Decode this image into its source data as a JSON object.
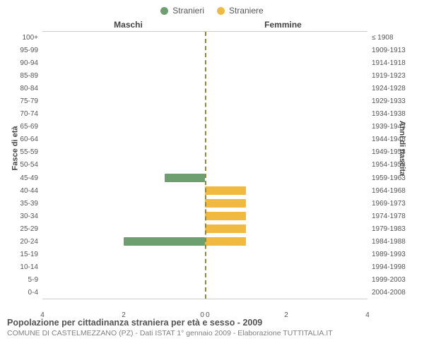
{
  "legend": {
    "male": {
      "label": "Stranieri",
      "color": "#6e9f71"
    },
    "female": {
      "label": "Straniere",
      "color": "#f0b93f"
    }
  },
  "column_titles": {
    "left": "Maschi",
    "right": "Femmine"
  },
  "y_axis_left_title": "Fasce di età",
  "y_axis_right_title": "Anni di nascita",
  "caption": "Popolazione per cittadinanza straniera per età e sesso - 2009",
  "subcaption": "COMUNE DI CASTELMEZZANO (PZ) - Dati ISTAT 1° gennaio 2009 - Elaborazione TUTTITALIA.IT",
  "chart": {
    "type": "population-pyramid",
    "xmax": 4,
    "xticks": [
      4,
      2,
      0,
      0,
      2,
      4
    ],
    "background_color": "#ffffff",
    "centerline_color": "#8a8a3a",
    "rows": [
      {
        "age": "100+",
        "birth": "≤ 1908",
        "m": 0,
        "f": 0
      },
      {
        "age": "95-99",
        "birth": "1909-1913",
        "m": 0,
        "f": 0
      },
      {
        "age": "90-94",
        "birth": "1914-1918",
        "m": 0,
        "f": 0
      },
      {
        "age": "85-89",
        "birth": "1919-1923",
        "m": 0,
        "f": 0
      },
      {
        "age": "80-84",
        "birth": "1924-1928",
        "m": 0,
        "f": 0
      },
      {
        "age": "75-79",
        "birth": "1929-1933",
        "m": 0,
        "f": 0
      },
      {
        "age": "70-74",
        "birth": "1934-1938",
        "m": 0,
        "f": 0
      },
      {
        "age": "65-69",
        "birth": "1939-1943",
        "m": 0,
        "f": 0
      },
      {
        "age": "60-64",
        "birth": "1944-1948",
        "m": 0,
        "f": 0
      },
      {
        "age": "55-59",
        "birth": "1949-1953",
        "m": 0,
        "f": 0
      },
      {
        "age": "50-54",
        "birth": "1954-1958",
        "m": 0,
        "f": 0
      },
      {
        "age": "45-49",
        "birth": "1959-1963",
        "m": 1,
        "f": 0
      },
      {
        "age": "40-44",
        "birth": "1964-1968",
        "m": 0,
        "f": 1
      },
      {
        "age": "35-39",
        "birth": "1969-1973",
        "m": 0,
        "f": 1
      },
      {
        "age": "30-34",
        "birth": "1974-1978",
        "m": 0,
        "f": 1
      },
      {
        "age": "25-29",
        "birth": "1979-1983",
        "m": 0,
        "f": 1
      },
      {
        "age": "20-24",
        "birth": "1984-1988",
        "m": 2,
        "f": 1
      },
      {
        "age": "15-19",
        "birth": "1989-1993",
        "m": 0,
        "f": 0
      },
      {
        "age": "10-14",
        "birth": "1994-1998",
        "m": 0,
        "f": 0
      },
      {
        "age": "5-9",
        "birth": "1999-2003",
        "m": 0,
        "f": 0
      },
      {
        "age": "0-4",
        "birth": "2004-2008",
        "m": 0,
        "f": 0
      }
    ]
  }
}
